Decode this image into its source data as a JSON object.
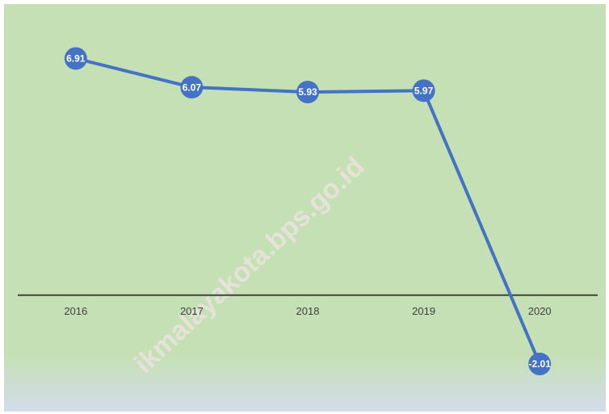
{
  "chart_data": {
    "type": "line",
    "categories": [
      "2016",
      "2017",
      "2018",
      "2019",
      "2020"
    ],
    "series": [
      {
        "name": null,
        "color": "#4472c4",
        "values": [
          6.91,
          6.07,
          5.93,
          5.97,
          -2.01
        ]
      }
    ],
    "ylim": [
      -3.4,
      8.5
    ],
    "watermark": "ikmalayakota.bps.go.id"
  }
}
